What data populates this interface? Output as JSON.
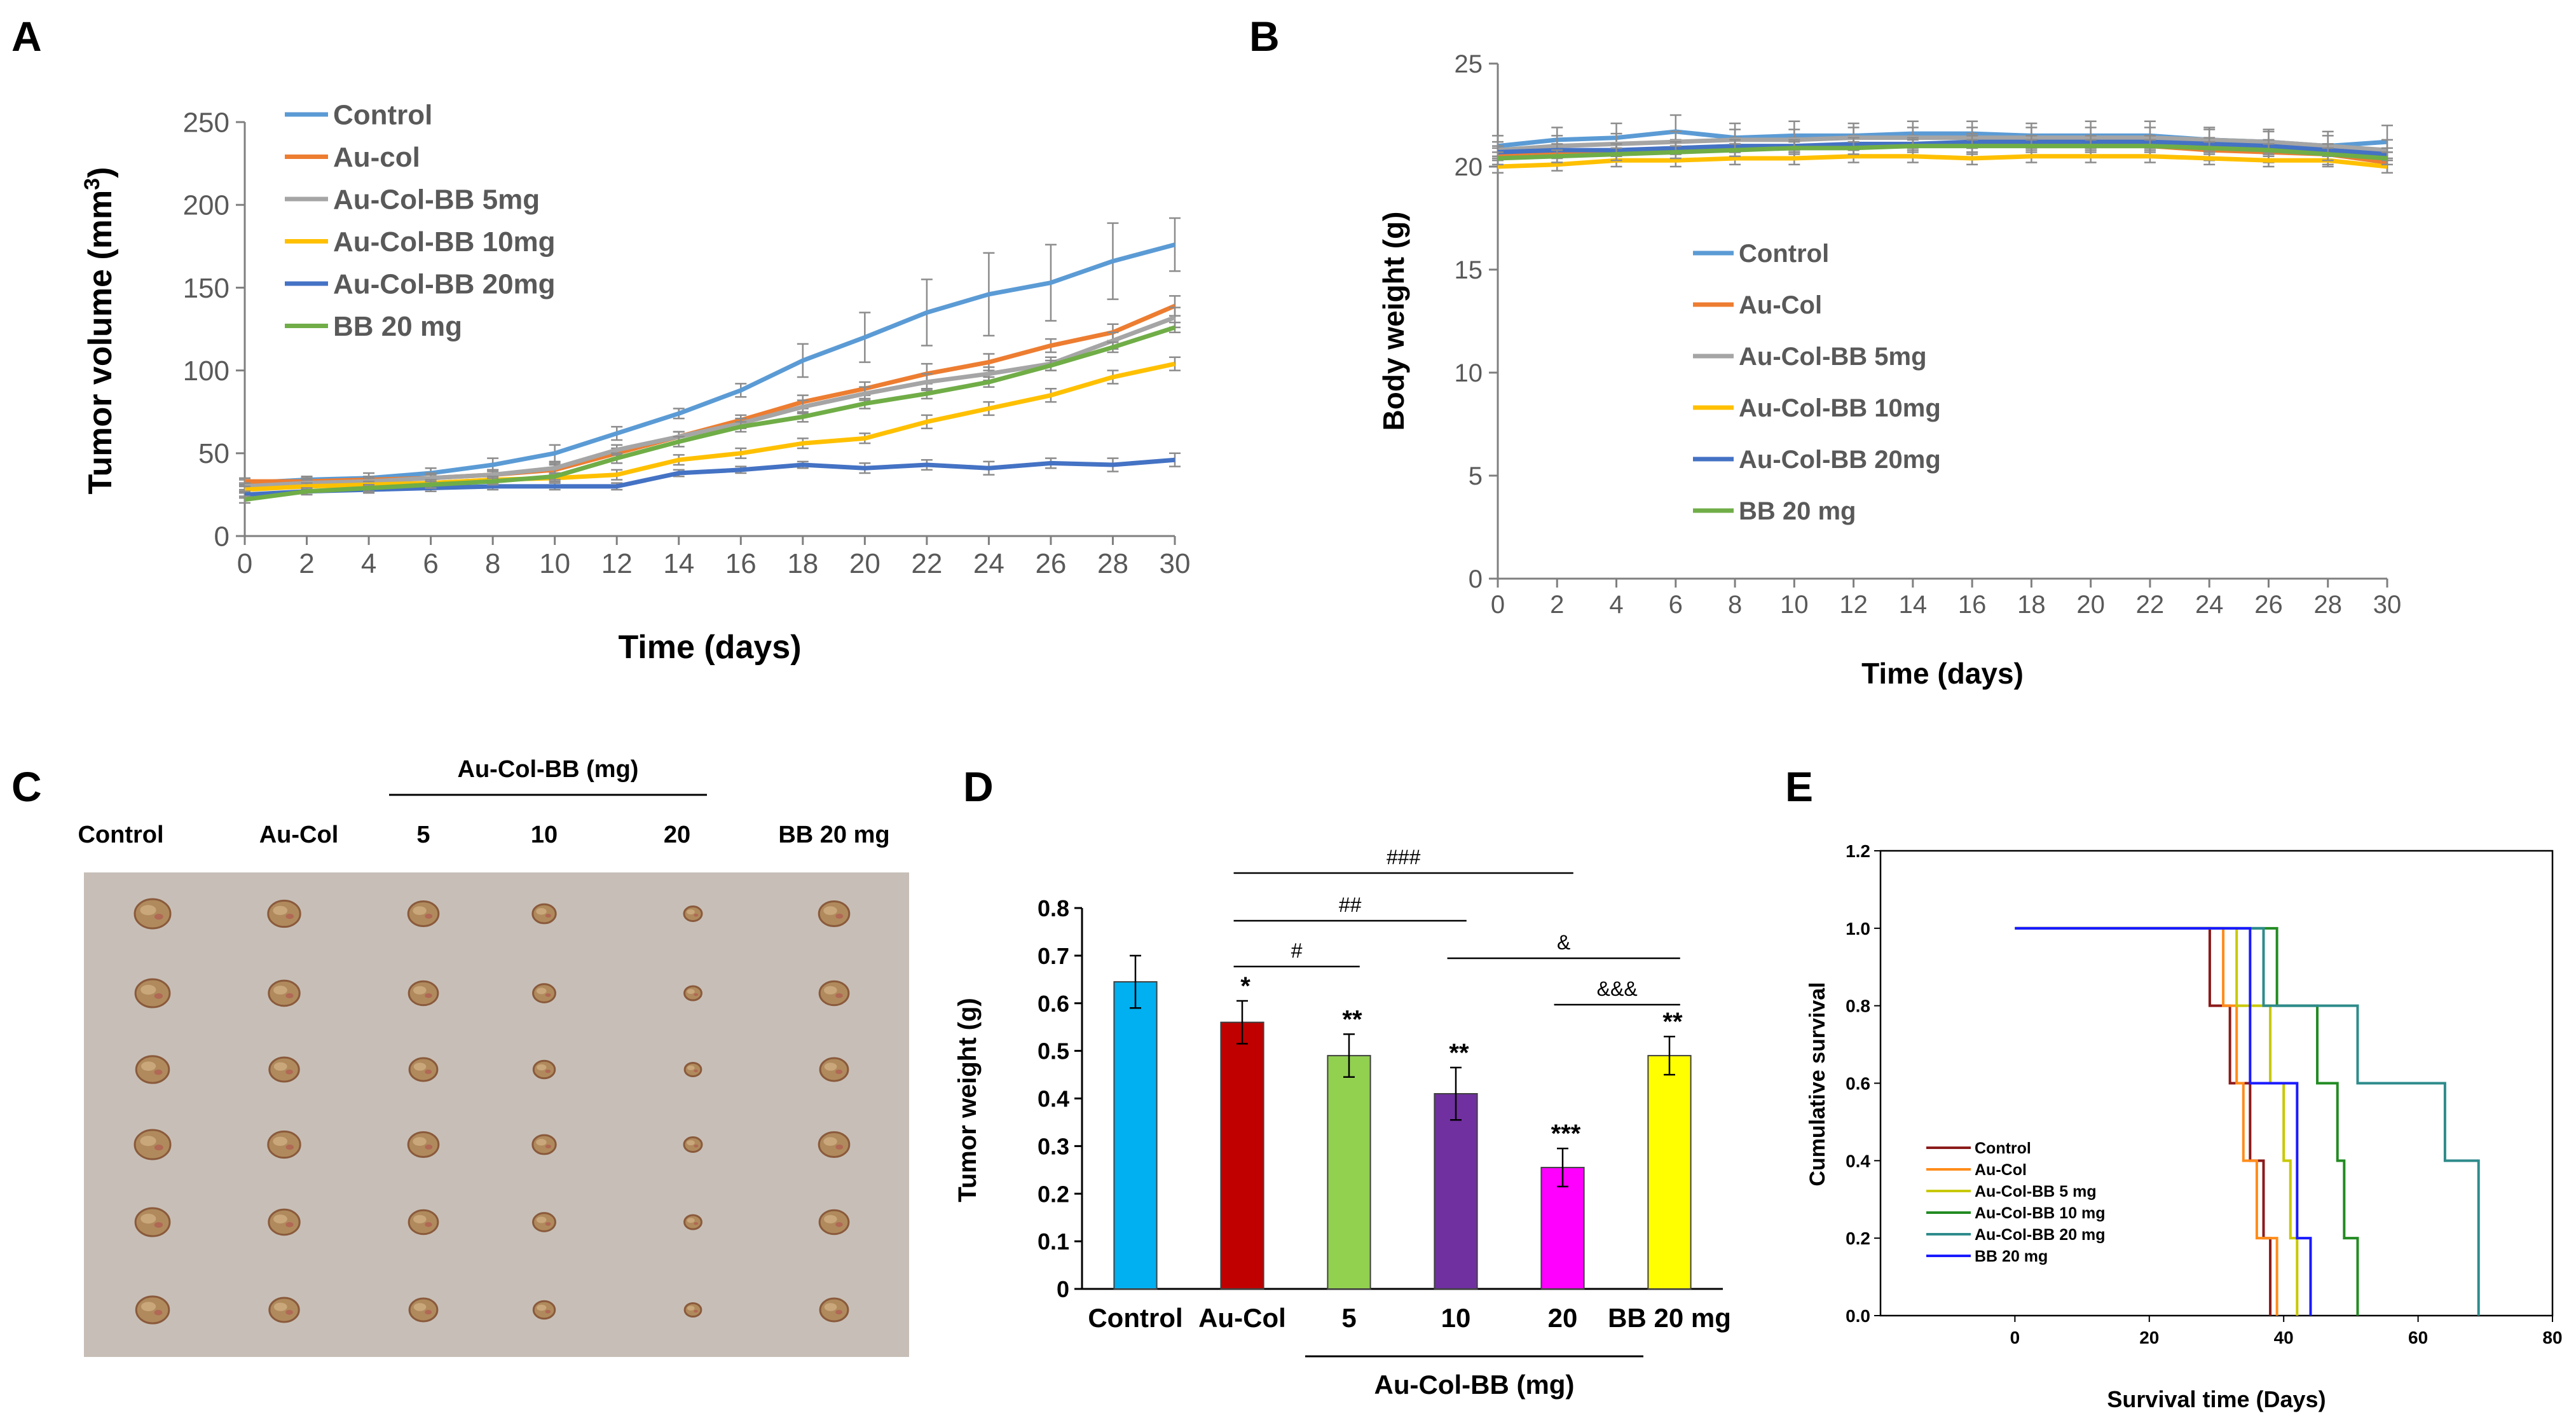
{
  "panels": {
    "A": "A",
    "B": "B",
    "C": "C",
    "D": "D",
    "E": "E"
  },
  "colors": {
    "control": "#5b9bd5",
    "au_col": "#ed7d31",
    "bb5": "#a5a5a5",
    "bb10": "#ffc000",
    "bb20": "#4472c4",
    "bbfree": "#70ad47"
  },
  "chart_data": [
    {
      "id": "A",
      "type": "line",
      "title": "",
      "xlabel": "Time (days)",
      "ylabel": "Tumor volume (mm3)",
      "ylabel_main": "Tumor volume (mm",
      "ylabel_sup": "3",
      "ylabel_end": ")",
      "x": [
        0,
        2,
        4,
        6,
        8,
        10,
        12,
        14,
        16,
        18,
        20,
        22,
        24,
        26,
        28,
        30
      ],
      "xlim": [
        0,
        30
      ],
      "ylim": [
        0,
        250
      ],
      "yticks": [
        0,
        50,
        100,
        150,
        200,
        250
      ],
      "legend_position": "top-left",
      "series": [
        {
          "name": "Control",
          "color": "#5b9bd5",
          "values": [
            32,
            34,
            35,
            38,
            43,
            50,
            62,
            74,
            88,
            106,
            120,
            135,
            146,
            153,
            166,
            176
          ],
          "err": [
            2,
            2,
            3,
            3,
            4,
            5,
            4,
            3,
            4,
            10,
            15,
            20,
            25,
            23,
            23,
            16
          ]
        },
        {
          "name": "Au-col",
          "color": "#ed7d31",
          "values": [
            33,
            33,
            34,
            35,
            37,
            40,
            50,
            60,
            70,
            81,
            89,
            98,
            105,
            115,
            123,
            139
          ],
          "err": [
            2,
            2,
            2,
            3,
            3,
            3,
            3,
            3,
            3,
            4,
            4,
            6,
            5,
            4,
            5,
            6
          ]
        },
        {
          "name": "Au-Col-BB 5mg",
          "color": "#a5a5a5",
          "values": [
            30,
            32,
            33,
            35,
            37,
            41,
            52,
            60,
            68,
            78,
            86,
            93,
            98,
            104,
            118,
            132
          ],
          "err": [
            2,
            2,
            2,
            2,
            3,
            3,
            3,
            3,
            3,
            4,
            4,
            5,
            4,
            4,
            5,
            6
          ]
        },
        {
          "name": "Au-Col-BB 10mg",
          "color": "#ffc000",
          "values": [
            28,
            30,
            31,
            32,
            34,
            35,
            37,
            46,
            50,
            56,
            59,
            69,
            77,
            85,
            96,
            104
          ],
          "err": [
            2,
            2,
            2,
            2,
            2,
            2,
            3,
            3,
            3,
            3,
            3,
            4,
            4,
            4,
            4,
            4
          ]
        },
        {
          "name": "Au-Col-BB 20mg",
          "color": "#4472c4",
          "values": [
            25,
            27,
            28,
            29,
            30,
            30,
            30,
            38,
            40,
            43,
            41,
            43,
            41,
            44,
            43,
            46
          ],
          "err": [
            2,
            2,
            2,
            2,
            2,
            2,
            2,
            2,
            2,
            2,
            3,
            3,
            4,
            3,
            4,
            4
          ]
        },
        {
          "name": "BB 20 mg",
          "color": "#70ad47",
          "values": [
            22,
            27,
            29,
            31,
            33,
            36,
            47,
            57,
            66,
            72,
            80,
            86,
            93,
            103,
            114,
            126
          ],
          "err": [
            2,
            2,
            2,
            2,
            2,
            2,
            3,
            3,
            3,
            3,
            3,
            3,
            3,
            3,
            3,
            3
          ]
        }
      ]
    },
    {
      "id": "B",
      "type": "line",
      "title": "",
      "xlabel": "Time (days)",
      "ylabel": "Body weight (g)",
      "x": [
        0,
        2,
        4,
        6,
        8,
        10,
        12,
        14,
        16,
        18,
        20,
        22,
        24,
        26,
        28,
        30
      ],
      "xlim": [
        0,
        30
      ],
      "ylim": [
        0,
        25
      ],
      "yticks": [
        0,
        5,
        10,
        15,
        20,
        25
      ],
      "legend_position": "center-left",
      "series": [
        {
          "name": "Control",
          "color": "#5b9bd5",
          "values": [
            21.0,
            21.3,
            21.4,
            21.7,
            21.4,
            21.5,
            21.5,
            21.6,
            21.6,
            21.5,
            21.5,
            21.5,
            21.3,
            21.2,
            21.0,
            21.2
          ],
          "err": [
            0.5,
            0.6,
            0.7,
            0.8,
            0.7,
            0.7,
            0.6,
            0.6,
            0.6,
            0.6,
            0.7,
            0.7,
            0.6,
            0.6,
            0.7,
            0.8
          ]
        },
        {
          "name": "Au-Col",
          "color": "#ed7d31",
          "values": [
            20.5,
            20.6,
            20.7,
            20.8,
            20.9,
            20.9,
            21.0,
            21.0,
            21.1,
            21.0,
            21.0,
            21.0,
            20.8,
            20.7,
            20.6,
            20.2
          ],
          "err": [
            0.4,
            0.4,
            0.4,
            0.5,
            0.5,
            0.5,
            0.5,
            0.5,
            0.5,
            0.5,
            0.5,
            0.5,
            0.5,
            0.5,
            0.5,
            0.5
          ]
        },
        {
          "name": "Au-Col-BB 5mg",
          "color": "#a5a5a5",
          "values": [
            20.8,
            21.0,
            21.1,
            21.2,
            21.3,
            21.3,
            21.4,
            21.4,
            21.4,
            21.4,
            21.4,
            21.4,
            21.3,
            21.2,
            21.0,
            20.8
          ],
          "err": [
            0.4,
            0.5,
            0.5,
            0.5,
            0.5,
            0.5,
            0.5,
            0.5,
            0.5,
            0.5,
            0.5,
            0.5,
            0.5,
            0.5,
            0.5,
            0.5
          ]
        },
        {
          "name": "Au-Col-BB 10mg",
          "color": "#ffc000",
          "values": [
            20.0,
            20.1,
            20.3,
            20.3,
            20.4,
            20.4,
            20.5,
            20.5,
            20.4,
            20.5,
            20.5,
            20.5,
            20.4,
            20.3,
            20.3,
            20.0
          ],
          "err": [
            0.3,
            0.3,
            0.3,
            0.3,
            0.3,
            0.3,
            0.3,
            0.3,
            0.3,
            0.3,
            0.3,
            0.3,
            0.3,
            0.3,
            0.3,
            0.3
          ]
        },
        {
          "name": "Au-Col-BB 20mg",
          "color": "#4472c4",
          "values": [
            20.7,
            20.8,
            20.8,
            20.9,
            21.0,
            21.0,
            21.1,
            21.1,
            21.2,
            21.2,
            21.2,
            21.2,
            21.1,
            21.0,
            20.8,
            20.6
          ],
          "err": [
            0.3,
            0.3,
            0.3,
            0.3,
            0.3,
            0.3,
            0.3,
            0.3,
            0.3,
            0.3,
            0.3,
            0.3,
            0.3,
            0.3,
            0.3,
            0.3
          ]
        },
        {
          "name": "BB 20 mg",
          "color": "#70ad47",
          "values": [
            20.4,
            20.5,
            20.6,
            20.7,
            20.8,
            20.9,
            20.9,
            21.0,
            21.0,
            21.0,
            21.0,
            21.0,
            20.9,
            20.8,
            20.6,
            20.4
          ],
          "err": [
            0.3,
            0.3,
            0.3,
            0.3,
            0.3,
            0.3,
            0.3,
            0.3,
            0.3,
            0.3,
            0.3,
            0.3,
            0.3,
            0.3,
            0.3,
            0.3
          ]
        }
      ]
    },
    {
      "id": "D",
      "type": "bar",
      "title": "",
      "xlabel": "",
      "ylabel": "Tumor weight (g)",
      "categories": [
        "Control",
        "Au-Col",
        "5",
        "10",
        "20",
        "BB 20 mg"
      ],
      "values": [
        0.645,
        0.56,
        0.49,
        0.41,
        0.255,
        0.49
      ],
      "errors": [
        0.055,
        0.045,
        0.045,
        0.055,
        0.04,
        0.04
      ],
      "colors": [
        "#00b0f0",
        "#c00000",
        "#92d050",
        "#7030a0",
        "#ff00ff",
        "#ffff00"
      ],
      "stars": [
        "",
        "*",
        "**",
        "**",
        "***",
        "**"
      ],
      "ylim": [
        0,
        0.8
      ],
      "yticks": [
        "0",
        "0.1",
        "0.2",
        "0.3",
        "0.4",
        "0.5",
        "0.6",
        "0.7",
        "0.8"
      ],
      "group_label": "Au-Col-BB (mg)",
      "brackets": [
        {
          "label": "###",
          "from": 1,
          "to": 4
        },
        {
          "label": "##",
          "from": 1,
          "to": 3
        },
        {
          "label": "#",
          "from": 1,
          "to": 2
        },
        {
          "label": "&",
          "from": 3,
          "to": 5
        },
        {
          "label": "&&&",
          "from": 4,
          "to": 5
        }
      ]
    },
    {
      "id": "E",
      "type": "line",
      "subtype": "kaplan-meier step",
      "title": "",
      "xlabel": "Survival time (Days)",
      "ylabel": "Cumulative survival",
      "xlim": [
        -20,
        80
      ],
      "ylim": [
        0,
        1.2
      ],
      "xticks": [
        0,
        20,
        40,
        60,
        80
      ],
      "yticks": [
        "0.0",
        "0.2",
        "0.4",
        "0.6",
        "0.8",
        "1.0",
        "1.2"
      ],
      "legend_position": "bottom-left",
      "series": [
        {
          "name": "Control",
          "color": "#8b1a1a",
          "steps": [
            [
              0,
              1.0
            ],
            [
              29,
              0.8
            ],
            [
              32,
              0.6
            ],
            [
              35,
              0.4
            ],
            [
              37,
              0.2
            ],
            [
              38,
              0.0
            ]
          ]
        },
        {
          "name": "Au-Col",
          "color": "#ff8c1a",
          "steps": [
            [
              0,
              1.0
            ],
            [
              31,
              0.8
            ],
            [
              33,
              0.6
            ],
            [
              34,
              0.4
            ],
            [
              36,
              0.2
            ],
            [
              39,
              0.0
            ]
          ]
        },
        {
          "name": "Au-Col-BB 5 mg",
          "color": "#c8c800",
          "steps": [
            [
              0,
              1.0
            ],
            [
              33,
              0.8
            ],
            [
              38,
              0.6
            ],
            [
              40,
              0.4
            ],
            [
              41,
              0.2
            ],
            [
              42,
              0.0
            ]
          ]
        },
        {
          "name": "Au-Col-BB 10 mg",
          "color": "#228b22",
          "steps": [
            [
              0,
              1.0
            ],
            [
              39,
              0.8
            ],
            [
              45,
              0.6
            ],
            [
              48,
              0.4
            ],
            [
              49,
              0.2
            ],
            [
              51,
              0.0
            ]
          ]
        },
        {
          "name": "Au-Col-BB 20 mg",
          "color": "#2e8b8b",
          "steps": [
            [
              0,
              1.0
            ],
            [
              37,
              0.8
            ],
            [
              51,
              0.6
            ],
            [
              64,
              0.4
            ],
            [
              69,
              0.0
            ]
          ]
        },
        {
          "name": "BB 20 mg",
          "color": "#1a1aff",
          "steps": [
            [
              0,
              1.0
            ],
            [
              35,
              0.6
            ],
            [
              42,
              0.2
            ],
            [
              44,
              0.0
            ]
          ]
        }
      ]
    }
  ],
  "photo": {
    "header": "Au-Col-BB (mg)",
    "columns": [
      "Control",
      "Au-Col",
      "5",
      "10",
      "20",
      "BB 20 mg"
    ],
    "tumor_size_relative": [
      1.0,
      0.9,
      0.85,
      0.65,
      0.5,
      0.85
    ],
    "rows": 6
  }
}
